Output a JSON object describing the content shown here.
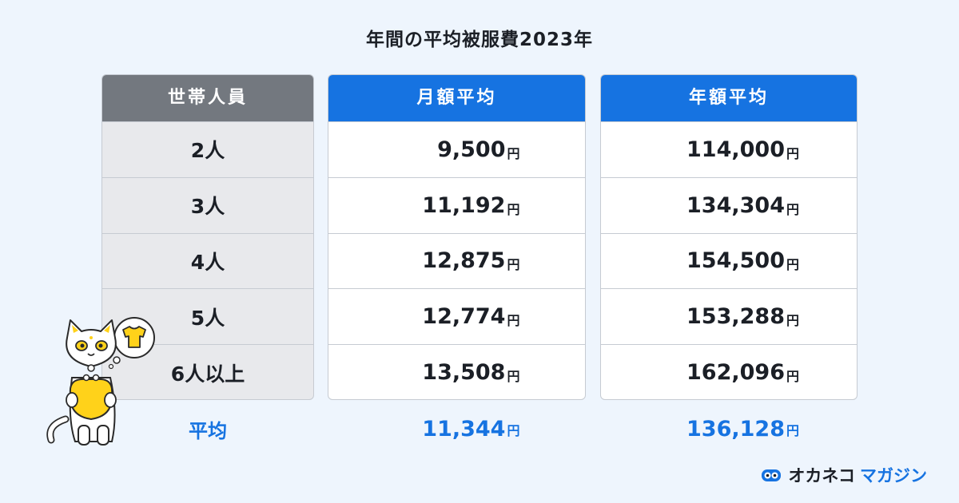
{
  "title": "年間の平均被服費2023年",
  "headers": {
    "category": "世帯人員",
    "monthly": "月額平均",
    "yearly": "年額平均"
  },
  "unit": "円",
  "rows": [
    {
      "label": "2人",
      "monthly": "9,500",
      "yearly": "114,000"
    },
    {
      "label": "3人",
      "monthly": "11,192",
      "yearly": "134,304"
    },
    {
      "label": "4人",
      "monthly": "12,875",
      "yearly": "154,500"
    },
    {
      "label": "5人",
      "monthly": "12,774",
      "yearly": "153,288"
    },
    {
      "label": "6人以上",
      "monthly": "13,508",
      "yearly": "162,096"
    }
  ],
  "average": {
    "label": "平均",
    "monthly": "11,344",
    "yearly": "136,128"
  },
  "logo": {
    "part1": "オカネコ",
    "part2": "マガジン"
  },
  "colors": {
    "accent": "#1673e1",
    "header_gray": "#73787f",
    "background": "#eef5fd",
    "mascot_yellow": "#ffd21a"
  },
  "chart_data": {
    "type": "table",
    "title": "年間の平均被服費2023年",
    "columns": [
      "世帯人員",
      "月額平均",
      "年額平均"
    ],
    "categories": [
      "2人",
      "3人",
      "4人",
      "5人",
      "6人以上"
    ],
    "series": [
      {
        "name": "月額平均",
        "values": [
          9500,
          11192,
          12875,
          12774,
          13508
        ]
      },
      {
        "name": "年額平均",
        "values": [
          114000,
          134304,
          154500,
          153288,
          162096
        ]
      }
    ],
    "average": {
      "label": "平均",
      "月額平均": 11344,
      "年額平均": 136128
    },
    "unit": "円"
  }
}
